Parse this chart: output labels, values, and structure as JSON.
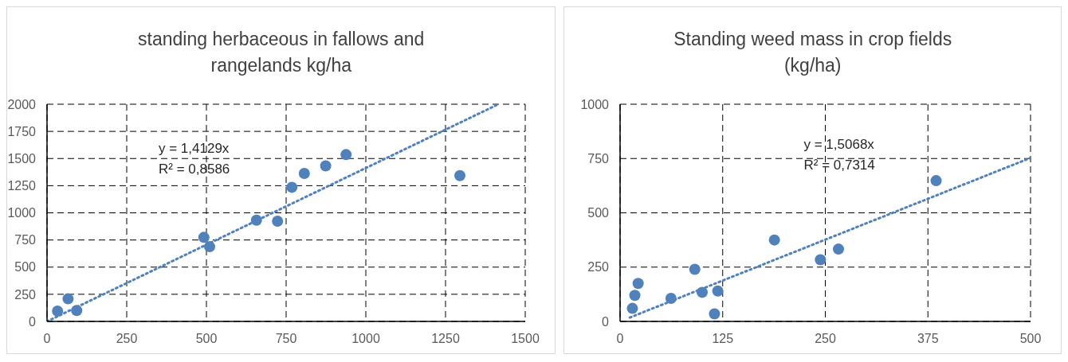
{
  "chart_data": [
    {
      "type": "scatter",
      "title": "standing herbaceous in fallows and rangelands kg/ha",
      "marker": "circle",
      "grid": true,
      "xlim": [
        0,
        1500
      ],
      "xticks": [
        0,
        250,
        500,
        750,
        1000,
        1250,
        1500
      ],
      "ylim": [
        0,
        2000
      ],
      "yticks": [
        0,
        250,
        500,
        750,
        1000,
        1250,
        1500,
        1750,
        2000
      ],
      "annotations": [
        "y = 1,4129x",
        "R² = 0,8586"
      ],
      "series": [
        {
          "color": "#4f81bd",
          "x": [
            33,
            66,
            93,
            492,
            510,
            657,
            723,
            768,
            807,
            874,
            938,
            1295
          ],
          "values": [
            95,
            208,
            101,
            774,
            688,
            932,
            923,
            1235,
            1363,
            1432,
            1536,
            1342
          ]
        },
        {
          "type": "line",
          "color": "#4f81bd",
          "line_style": "dotted",
          "marker": "none",
          "x": [
            0,
            1415
          ],
          "values": [
            0,
            1999
          ]
        }
      ]
    },
    {
      "type": "scatter",
      "title": "Standing weed mass in crop fields (kg/ha)",
      "marker": "circle",
      "grid": true,
      "xlim": [
        0,
        500
      ],
      "xticks": [
        0,
        125,
        250,
        375,
        500
      ],
      "ylim": [
        0,
        1000
      ],
      "yticks": [
        0,
        250,
        500,
        750,
        1000
      ],
      "annotations": [
        "y = 1,5068x",
        "R² = 0,7314"
      ],
      "series": [
        {
          "color": "#4f81bd",
          "x": [
            15,
            18,
            22,
            62,
            91,
            100,
            115,
            119,
            188,
            244,
            266,
            385
          ],
          "values": [
            60,
            120,
            175,
            106,
            240,
            134,
            35,
            140,
            375,
            284,
            333,
            648
          ]
        },
        {
          "type": "line",
          "color": "#4f81bd",
          "line_style": "dotted",
          "marker": "none",
          "x": [
            12,
            500
          ],
          "values": [
            18,
            753
          ]
        }
      ]
    }
  ]
}
